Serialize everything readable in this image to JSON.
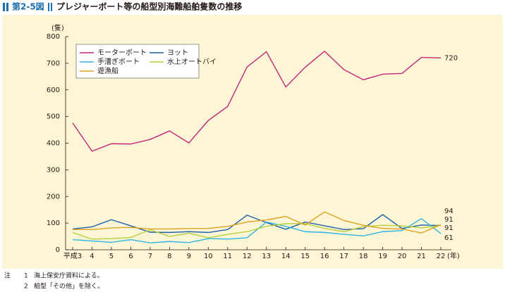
{
  "chart_data": {
    "type": "line",
    "figure_label": "第2-5図",
    "title": "プレジャーボート等の船型別海難船舶隻数の推移",
    "y_label": "(隻)",
    "x_label": "(年)",
    "categories": [
      "平成3",
      "4",
      "5",
      "6",
      "7",
      "8",
      "9",
      "10",
      "11",
      "12",
      "13",
      "14",
      "15",
      "16",
      "17",
      "18",
      "19",
      "20",
      "21",
      "22"
    ],
    "series": [
      {
        "name": "モーターボート",
        "color": "#c2277b",
        "values": [
          476,
          370,
          398,
          397,
          414,
          446,
          401,
          485,
          538,
          686,
          743,
          611,
          685,
          745,
          676,
          638,
          659,
          662,
          722,
          720
        ]
      },
      {
        "name": "ヨット",
        "color": "#1f5fa8",
        "values": [
          78,
          86,
          113,
          90,
          66,
          65,
          68,
          65,
          76,
          130,
          102,
          77,
          104,
          90,
          76,
          79,
          132,
          80,
          93,
          91
        ]
      },
      {
        "name": "手漕ぎボート",
        "color": "#2fb3e0",
        "values": [
          38,
          33,
          28,
          38,
          26,
          31,
          27,
          42,
          40,
          45,
          104,
          88,
          68,
          65,
          58,
          52,
          68,
          72,
          117,
          61
        ]
      },
      {
        "name": "水上オートバイ",
        "color": "#b5cf3a",
        "values": [
          65,
          40,
          42,
          46,
          75,
          50,
          62,
          45,
          58,
          68,
          88,
          98,
          98,
          80,
          68,
          87,
          92,
          90,
          82,
          91
        ]
      },
      {
        "name": "遊漁船",
        "color": "#e0a020",
        "values": [
          76,
          76,
          82,
          84,
          78,
          78,
          80,
          80,
          88,
          104,
          112,
          125,
          93,
          142,
          110,
          92,
          80,
          78,
          63,
          94
        ]
      }
    ],
    "ylim": [
      0,
      800
    ],
    "yticks": [
      0,
      100,
      200,
      300,
      400,
      500,
      600,
      700,
      800
    ],
    "grid": false,
    "notes_label": "注",
    "notes": [
      {
        "number": "1",
        "text": "海上保安庁資料による。"
      },
      {
        "number": "2",
        "text": "船型「その他」を除く。"
      }
    ]
  }
}
